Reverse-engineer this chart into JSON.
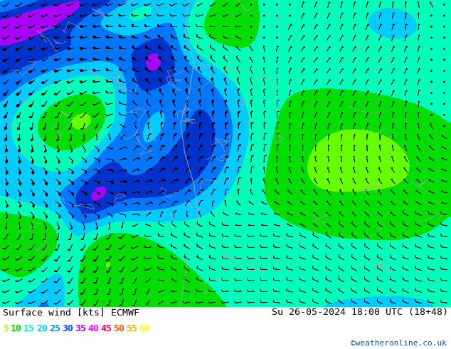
{
  "title_left": "Surface wind [kts] ECMWF",
  "title_right": "Su 26-05-2024 18:00 UTC (18+48)",
  "credit": "©weatheronline.co.uk",
  "legend_values": [
    "5",
    "10",
    "15",
    "20",
    "25",
    "30",
    "35",
    "40",
    "45",
    "50",
    "55",
    "60"
  ],
  "legend_colors": [
    "#aaff00",
    "#00dd00",
    "#00ffaa",
    "#00ccff",
    "#0088ff",
    "#0044ff",
    "#aa00ff",
    "#ff00ff",
    "#ff0055",
    "#ff5500",
    "#ffaa00",
    "#ffff00"
  ],
  "bg_color": "#ffffff",
  "wind_levels": [
    0,
    5,
    10,
    15,
    20,
    25,
    30,
    35,
    40,
    45,
    50,
    55,
    60,
    80
  ],
  "wind_colors_map": [
    "#ccff44",
    "#66ff00",
    "#00dd00",
    "#00ffbb",
    "#00ccff",
    "#0077ff",
    "#0033cc",
    "#aa00ff",
    "#ff00ff",
    "#ff0055",
    "#ff6600",
    "#ffcc00",
    "#ffff44"
  ],
  "wind_color": "#000000",
  "fig_width": 6.34,
  "fig_height": 4.9,
  "dpi": 100
}
